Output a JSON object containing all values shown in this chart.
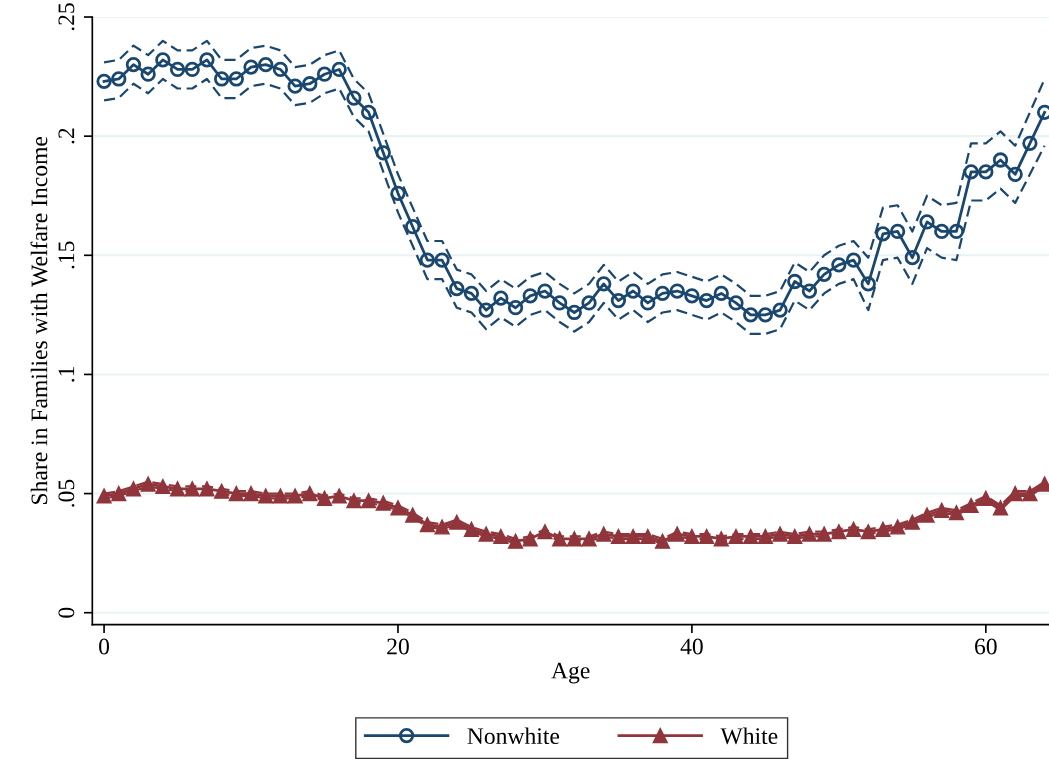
{
  "chart_data": {
    "type": "line",
    "xlabel": "Age",
    "ylabel": "Share in Families with Welfare Income",
    "x": [
      0,
      1,
      2,
      3,
      4,
      5,
      6,
      7,
      8,
      9,
      10,
      11,
      12,
      13,
      14,
      15,
      16,
      17,
      18,
      19,
      20,
      21,
      22,
      23,
      24,
      25,
      26,
      27,
      28,
      29,
      30,
      31,
      32,
      33,
      34,
      35,
      36,
      37,
      38,
      39,
      40,
      41,
      42,
      43,
      44,
      45,
      46,
      47,
      48,
      49,
      50,
      51,
      52,
      53,
      54,
      55,
      56,
      57,
      58,
      59,
      60,
      61,
      62,
      63,
      64
    ],
    "series": [
      {
        "color": "#1a476f",
        "marker": "none",
        "line_style": "dashed",
        "values": [
          0.215,
          0.216,
          0.222,
          0.218,
          0.224,
          0.22,
          0.22,
          0.224,
          0.216,
          0.216,
          0.221,
          0.222,
          0.22,
          0.213,
          0.214,
          0.218,
          0.22,
          0.208,
          0.202,
          0.185,
          0.168,
          0.154,
          0.14,
          0.14,
          0.128,
          0.126,
          0.119,
          0.124,
          0.12,
          0.125,
          0.127,
          0.122,
          0.118,
          0.122,
          0.13,
          0.123,
          0.127,
          0.122,
          0.126,
          0.127,
          0.125,
          0.123,
          0.126,
          0.122,
          0.117,
          0.117,
          0.119,
          0.131,
          0.127,
          0.134,
          0.138,
          0.14,
          0.127,
          0.148,
          0.149,
          0.138,
          0.153,
          0.149,
          0.148,
          0.173,
          0.173,
          0.178,
          0.172,
          0.184,
          0.196
        ]
      },
      {
        "color": "#1a476f",
        "marker": "none",
        "line_style": "dashed",
        "values": [
          0.231,
          0.232,
          0.238,
          0.234,
          0.24,
          0.236,
          0.236,
          0.24,
          0.232,
          0.232,
          0.237,
          0.238,
          0.236,
          0.229,
          0.23,
          0.234,
          0.236,
          0.224,
          0.218,
          0.201,
          0.184,
          0.17,
          0.156,
          0.156,
          0.144,
          0.142,
          0.135,
          0.14,
          0.136,
          0.141,
          0.143,
          0.138,
          0.134,
          0.138,
          0.146,
          0.139,
          0.143,
          0.138,
          0.142,
          0.143,
          0.141,
          0.139,
          0.142,
          0.138,
          0.133,
          0.133,
          0.135,
          0.147,
          0.143,
          0.15,
          0.154,
          0.156,
          0.149,
          0.17,
          0.171,
          0.16,
          0.175,
          0.171,
          0.172,
          0.197,
          0.197,
          0.202,
          0.196,
          0.21,
          0.224
        ]
      },
      {
        "color": "#90353b",
        "marker": "none",
        "line_style": "dashed",
        "values": [
          0.048,
          0.049,
          0.051,
          0.053,
          0.052,
          0.051,
          0.051,
          0.051,
          0.05,
          0.049,
          0.049,
          0.048,
          0.048,
          0.048,
          0.049,
          0.047,
          0.048,
          0.046,
          0.046,
          0.045,
          0.043,
          0.04,
          0.036,
          0.035,
          0.037,
          0.034,
          0.032,
          0.031,
          0.029,
          0.03,
          0.033,
          0.03,
          0.03,
          0.03,
          0.032,
          0.031,
          0.031,
          0.031,
          0.029,
          0.032,
          0.031,
          0.031,
          0.03,
          0.031,
          0.031,
          0.031,
          0.032,
          0.031,
          0.032,
          0.032,
          0.033,
          0.034,
          0.033,
          0.034,
          0.035,
          0.037,
          0.04,
          0.042,
          0.041,
          0.044,
          0.047,
          0.043,
          0.049,
          0.049,
          0.053
        ]
      },
      {
        "color": "#90353b",
        "marker": "none",
        "line_style": "dashed",
        "values": [
          0.05,
          0.051,
          0.053,
          0.055,
          0.054,
          0.053,
          0.053,
          0.053,
          0.052,
          0.051,
          0.051,
          0.05,
          0.05,
          0.05,
          0.051,
          0.049,
          0.05,
          0.048,
          0.048,
          0.047,
          0.045,
          0.042,
          0.038,
          0.037,
          0.039,
          0.036,
          0.034,
          0.033,
          0.031,
          0.032,
          0.035,
          0.032,
          0.032,
          0.032,
          0.034,
          0.033,
          0.033,
          0.033,
          0.031,
          0.034,
          0.033,
          0.033,
          0.032,
          0.033,
          0.033,
          0.033,
          0.034,
          0.033,
          0.034,
          0.034,
          0.035,
          0.036,
          0.035,
          0.036,
          0.037,
          0.039,
          0.042,
          0.044,
          0.043,
          0.046,
          0.049,
          0.045,
          0.051,
          0.051,
          0.055
        ]
      },
      {
        "name": "Nonwhite",
        "color": "#1a476f",
        "marker": "circle",
        "line_style": "solid",
        "values": [
          0.223,
          0.224,
          0.23,
          0.226,
          0.232,
          0.228,
          0.228,
          0.232,
          0.224,
          0.224,
          0.229,
          0.23,
          0.228,
          0.221,
          0.222,
          0.226,
          0.228,
          0.216,
          0.21,
          0.193,
          0.176,
          0.162,
          0.148,
          0.148,
          0.136,
          0.134,
          0.127,
          0.132,
          0.128,
          0.133,
          0.135,
          0.13,
          0.126,
          0.13,
          0.138,
          0.131,
          0.135,
          0.13,
          0.134,
          0.135,
          0.133,
          0.131,
          0.134,
          0.13,
          0.125,
          0.125,
          0.127,
          0.139,
          0.135,
          0.142,
          0.146,
          0.148,
          0.138,
          0.159,
          0.16,
          0.149,
          0.164,
          0.16,
          0.16,
          0.185,
          0.185,
          0.19,
          0.184,
          0.197,
          0.21
        ]
      },
      {
        "name": "White",
        "color": "#90353b",
        "marker": "triangle",
        "line_style": "solid",
        "values": [
          0.049,
          0.05,
          0.052,
          0.054,
          0.053,
          0.052,
          0.052,
          0.052,
          0.051,
          0.05,
          0.05,
          0.049,
          0.049,
          0.049,
          0.05,
          0.048,
          0.049,
          0.047,
          0.047,
          0.046,
          0.044,
          0.041,
          0.037,
          0.036,
          0.038,
          0.035,
          0.033,
          0.032,
          0.03,
          0.031,
          0.034,
          0.031,
          0.031,
          0.031,
          0.033,
          0.032,
          0.032,
          0.032,
          0.03,
          0.033,
          0.032,
          0.032,
          0.031,
          0.032,
          0.032,
          0.032,
          0.033,
          0.032,
          0.033,
          0.033,
          0.034,
          0.035,
          0.034,
          0.035,
          0.036,
          0.038,
          0.041,
          0.043,
          0.042,
          0.045,
          0.048,
          0.044,
          0.05,
          0.05,
          0.054
        ]
      }
    ],
    "xlim": [
      -0.8,
      64.3
    ],
    "xticks": [
      0,
      20,
      40,
      60
    ],
    "ylim": [
      -0.005,
      0.25
    ],
    "yticks": [
      {
        "value": 0,
        "label": "0"
      },
      {
        "value": 0.05,
        "label": ".05"
      },
      {
        "value": 0.1,
        "label": ".1"
      },
      {
        "value": 0.15,
        "label": ".15"
      },
      {
        "value": 0.2,
        "label": ".2"
      },
      {
        "value": 0.25,
        "label": ".25"
      }
    ],
    "grid": "y",
    "legend": "bottom"
  }
}
